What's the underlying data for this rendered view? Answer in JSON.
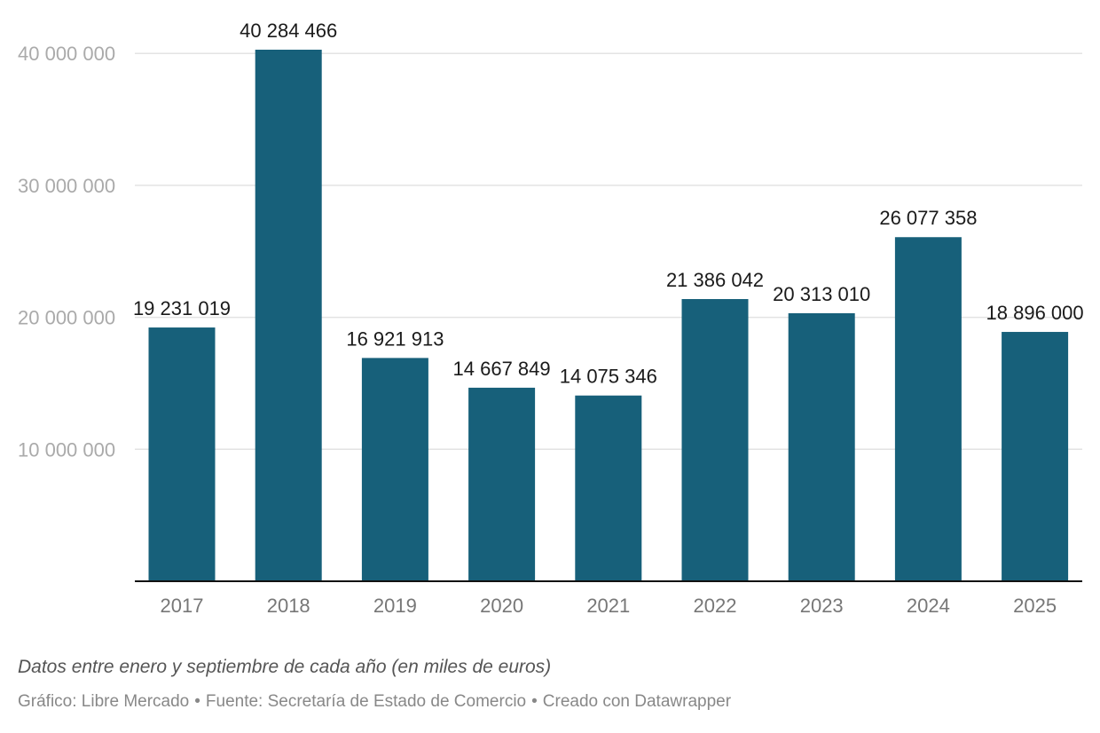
{
  "chart_data": {
    "type": "bar",
    "categories": [
      "2017",
      "2018",
      "2019",
      "2020",
      "2021",
      "2022",
      "2023",
      "2024",
      "2025"
    ],
    "values": [
      19231019,
      40284466,
      16921913,
      14667849,
      14075346,
      21386042,
      20313010,
      26077358,
      18896000
    ],
    "value_labels": [
      "19 231 019",
      "40 284 466",
      "16 921 913",
      "14 667 849",
      "14 075 346",
      "21 386 042",
      "20 313 010",
      "26 077 358",
      "18 896 000"
    ],
    "yticks": [
      10000000,
      20000000,
      30000000,
      40000000
    ],
    "ytick_labels": [
      "10 000 000",
      "20 000 000",
      "30 000 000",
      "40 000 000"
    ],
    "ylim": [
      0,
      40284466
    ],
    "grid": true,
    "bar_color": "#17607a",
    "title": "",
    "xlabel": "",
    "ylabel": ""
  },
  "footer": {
    "note": "Datos entre enero y septiembre de cada año (en miles de euros)",
    "credit_chart": "Gráfico: Libre Mercado",
    "credit_source": "Fuente: Secretaría de Estado de Comercio",
    "credit_tool": "Creado con Datawrapper"
  }
}
